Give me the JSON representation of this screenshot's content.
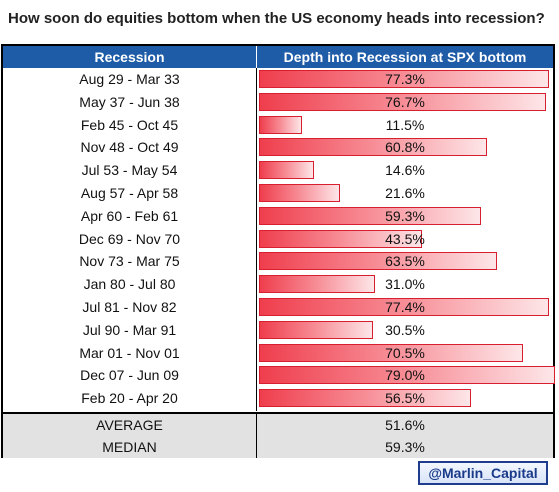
{
  "title": "How soon do equities bottom when the US economy heads into recession?",
  "credit": "@Marlin_Capital",
  "chart_data": {
    "type": "bar",
    "orientation": "horizontal",
    "columns": [
      "Recession",
      "Depth into Recession at SPX bottom"
    ],
    "unit": "%",
    "xlim": [
      0,
      79
    ],
    "rows": [
      {
        "label": "Aug 29 - Mar 33",
        "value": 77.3,
        "display": "77.3%"
      },
      {
        "label": "May 37 - Jun 38",
        "value": 76.7,
        "display": "76.7%"
      },
      {
        "label": "Feb 45 - Oct 45",
        "value": 11.5,
        "display": "11.5%"
      },
      {
        "label": "Nov 48 - Oct 49",
        "value": 60.8,
        "display": "60.8%"
      },
      {
        "label": "Jul 53 - May 54",
        "value": 14.6,
        "display": "14.6%"
      },
      {
        "label": "Aug 57 - Apr 58",
        "value": 21.6,
        "display": "21.6%"
      },
      {
        "label": "Apr 60 - Feb 61",
        "value": 59.3,
        "display": "59.3%"
      },
      {
        "label": "Dec 69 - Nov 70",
        "value": 43.5,
        "display": "43.5%"
      },
      {
        "label": "Nov 73 - Mar 75",
        "value": 63.5,
        "display": "63.5%"
      },
      {
        "label": "Jan 80 - Jul 80",
        "value": 31.0,
        "display": "31.0%"
      },
      {
        "label": "Jul 81 - Nov 82",
        "value": 77.4,
        "display": "77.4%"
      },
      {
        "label": "Jul 90 - Mar 91",
        "value": 30.5,
        "display": "30.5%"
      },
      {
        "label": "Mar 01 - Nov 01",
        "value": 70.5,
        "display": "70.5%"
      },
      {
        "label": "Dec 07 - Jun 09",
        "value": 79.0,
        "display": "79.0%"
      },
      {
        "label": "Feb 20 - Apr 20",
        "value": 56.5,
        "display": "56.5%"
      }
    ],
    "summary": [
      {
        "label": "AVERAGE",
        "display": "51.6%"
      },
      {
        "label": "MEDIAN",
        "display": "59.3%"
      }
    ]
  }
}
